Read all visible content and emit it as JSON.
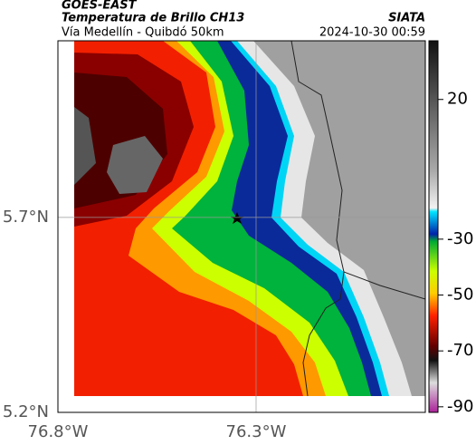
{
  "header": {
    "agency": "GOES-EAST",
    "title": "Temperatura de Brillo CH13",
    "subtitle": "Vía Medellín - Quibdó 50km",
    "source": "SIATA",
    "datetime": "2024-10-30 00:59"
  },
  "map": {
    "xlim": [
      -76.8,
      -75.873
    ],
    "ylim": [
      5.2,
      6.153
    ],
    "xticks": [
      {
        "value": -76.8,
        "label": "76.8°W"
      },
      {
        "value": -76.3,
        "label": "76.3°W"
      }
    ],
    "yticks": [
      {
        "value": 5.2,
        "label": "5.2°N"
      },
      {
        "value": 5.7,
        "label": "5.7°N"
      }
    ]
  },
  "colorbar": {
    "clim": [
      -92,
      41
    ],
    "ticks": [
      20,
      -30,
      -50,
      -70,
      -90
    ]
  }
}
